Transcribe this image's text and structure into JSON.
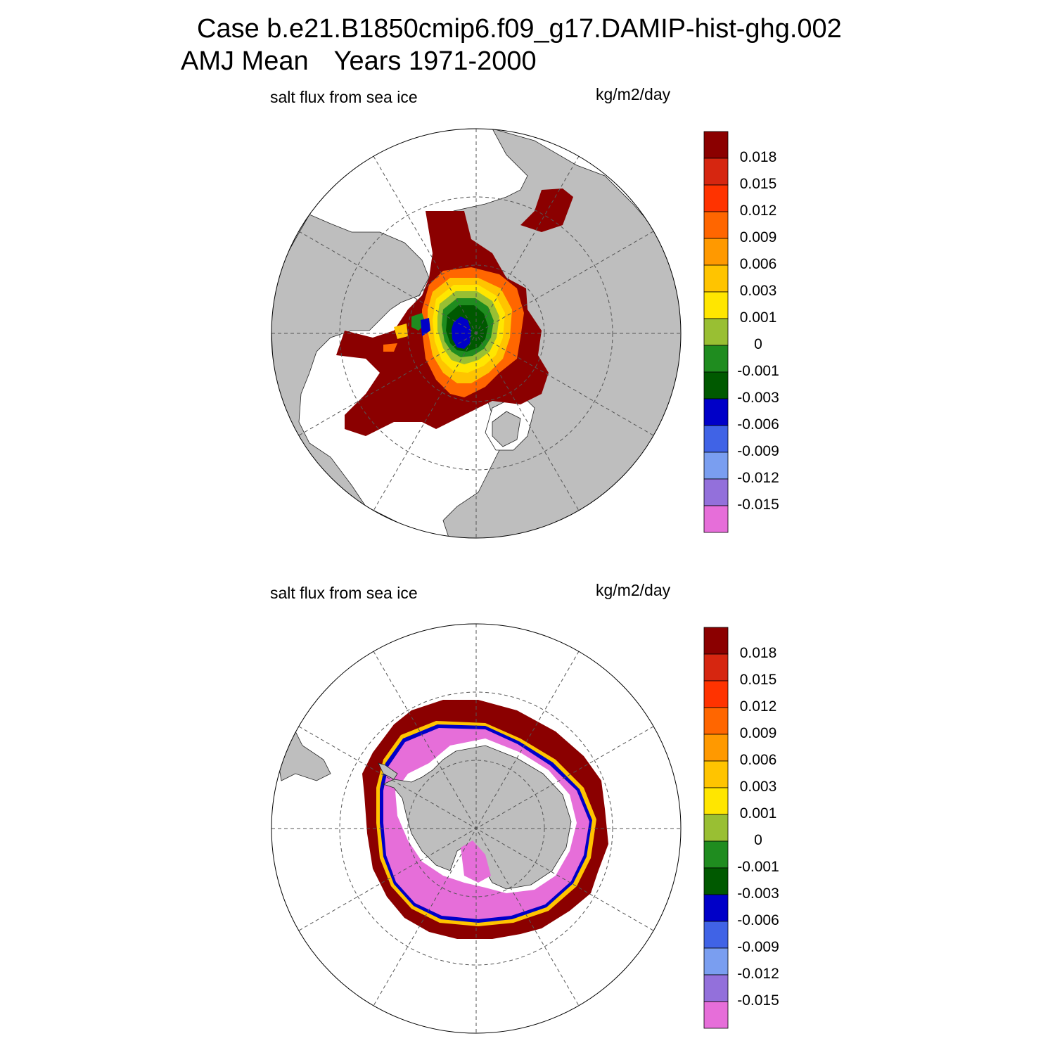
{
  "title": {
    "case": "Case b.e21.B1850cmip6.f09_g17.DAMIP-hist-ghg.002",
    "season": "AMJ Mean",
    "years": "Years 1971-2000"
  },
  "panels": [
    {
      "hemisphere": "north",
      "variable_label": "salt flux from sea ice",
      "units_label": "kg/m2/day"
    },
    {
      "hemisphere": "south",
      "variable_label": "salt flux from sea ice",
      "units_label": "kg/m2/day"
    }
  ],
  "colorbar": {
    "colors_top_to_bottom": [
      "#8b0000",
      "#d62610",
      "#ff3300",
      "#ff6600",
      "#ff9900",
      "#ffc400",
      "#ffe600",
      "#99bf33",
      "#1f8c1f",
      "#005900",
      "#0000c8",
      "#4063e6",
      "#7a9ef0",
      "#9370db",
      "#e66ed9"
    ],
    "labels": [
      "0.018",
      "0.015",
      "0.012",
      "0.009",
      "0.006",
      "0.003",
      "0.001",
      "0",
      "-0.001",
      "-0.003",
      "-0.006",
      "-0.009",
      "-0.012",
      "-0.015"
    ]
  },
  "colors": {
    "land": "#bebebe",
    "ocean": "#ffffff",
    "grid": "#555555"
  }
}
